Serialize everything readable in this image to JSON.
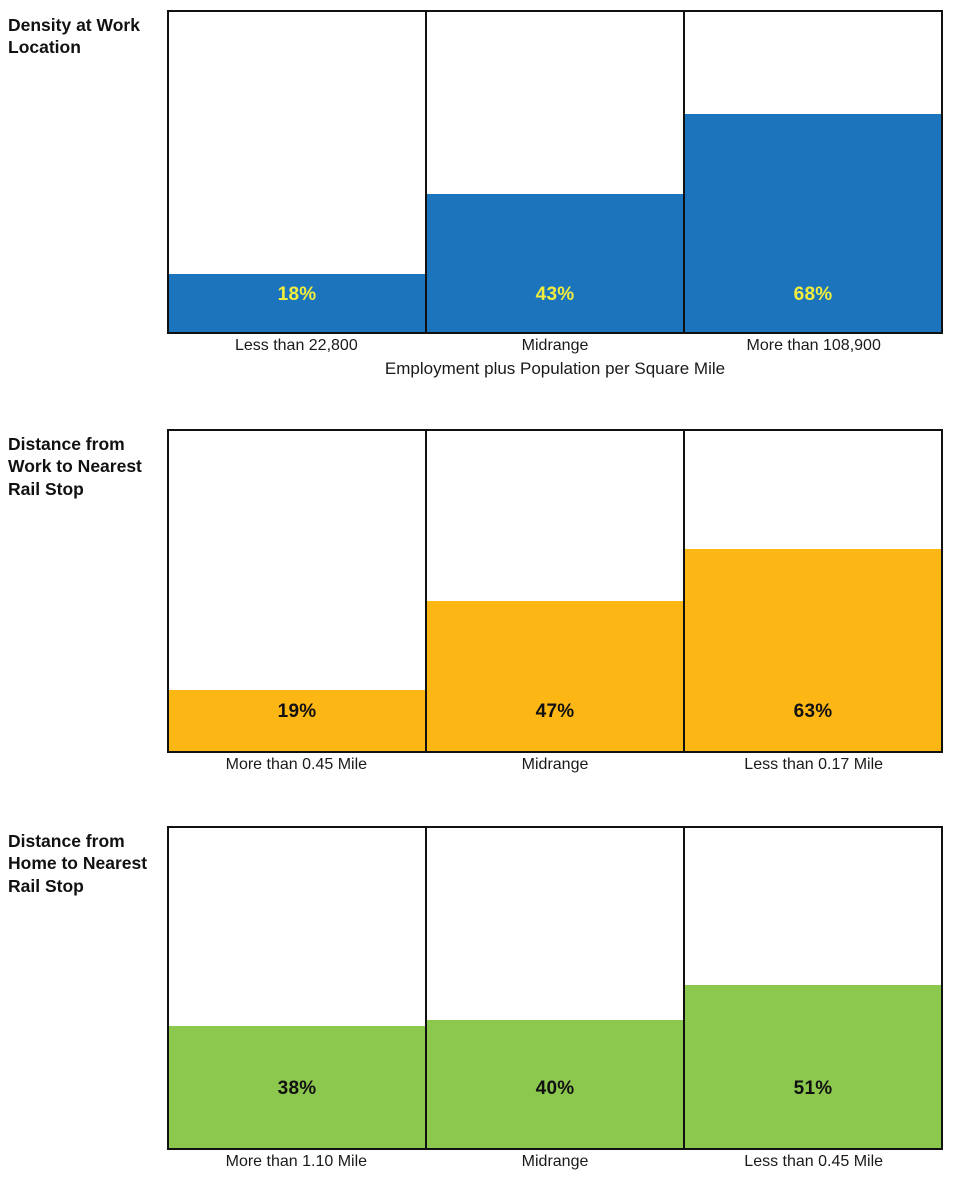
{
  "chart_data": [
    {
      "type": "bar",
      "title": "Density at Work Location",
      "categories": [
        "Less than 22,800",
        "Midrange",
        "More than 108,900"
      ],
      "values": [
        18,
        43,
        68
      ],
      "data_labels": [
        "18%",
        "43%",
        "68%"
      ],
      "xlabel": "Employment plus Population per Square Mile",
      "ylabel": "",
      "ylim": [
        0,
        100
      ],
      "grid": "off",
      "legend": "none",
      "bar_color": "#1C75BC",
      "data_label_color": "#F2EC3D"
    },
    {
      "type": "bar",
      "title": "Distance from Work to Nearest Rail Stop",
      "categories": [
        "More than 0.45 Mile",
        "Midrange",
        "Less than 0.17 Mile"
      ],
      "values": [
        19,
        47,
        63
      ],
      "data_labels": [
        "19%",
        "47%",
        "63%"
      ],
      "xlabel": "",
      "ylabel": "",
      "ylim": [
        0,
        100
      ],
      "grid": "off",
      "legend": "none",
      "bar_color": "#FDB714",
      "data_label_color": "#111111"
    },
    {
      "type": "bar",
      "title": "Distance from Home to Nearest Rail Stop",
      "categories": [
        "More than 1.10 Mile",
        "Midrange",
        "Less than 0.45 Mile"
      ],
      "values": [
        38,
        40,
        51
      ],
      "data_labels": [
        "38%",
        "40%",
        "51%"
      ],
      "xlabel": "",
      "ylabel": "",
      "ylim": [
        0,
        100
      ],
      "grid": "off",
      "legend": "none",
      "bar_color": "#8CC84E",
      "data_label_color": "#111111"
    }
  ]
}
